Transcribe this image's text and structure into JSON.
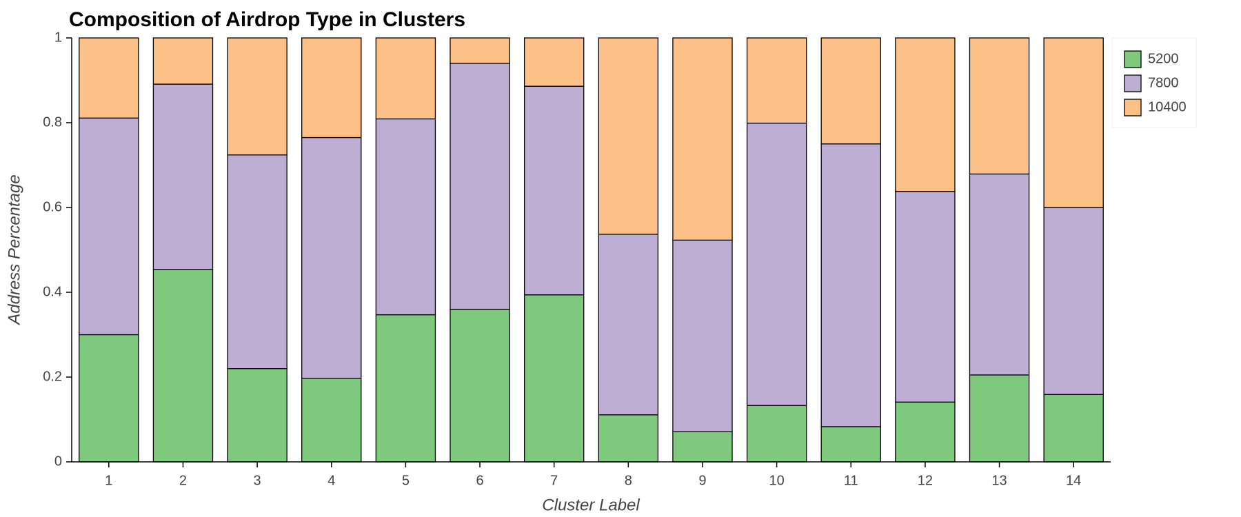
{
  "chart_data": {
    "type": "stacked_bar",
    "title": "Composition of Airdrop Type in Clusters",
    "x_label": "Cluster Label",
    "y_label": "Address Percentage",
    "categories": [
      "1",
      "2",
      "3",
      "4",
      "5",
      "6",
      "7",
      "8",
      "9",
      "10",
      "11",
      "12",
      "13",
      "14"
    ],
    "series": [
      {
        "name": "5200",
        "color": "#7fc97f",
        "values": [
          0.3,
          0.454,
          0.22,
          0.197,
          0.347,
          0.36,
          0.394,
          0.111,
          0.071,
          0.133,
          0.083,
          0.141,
          0.205,
          0.159
        ]
      },
      {
        "name": "7800",
        "color": "#beaed4",
        "values": [
          0.511,
          0.437,
          0.504,
          0.568,
          0.462,
          0.58,
          0.492,
          0.426,
          0.452,
          0.666,
          0.667,
          0.497,
          0.474,
          0.441
        ]
      },
      {
        "name": "10400",
        "color": "#fdc086",
        "values": [
          0.189,
          0.109,
          0.276,
          0.235,
          0.191,
          0.06,
          0.114,
          0.463,
          0.477,
          0.201,
          0.25,
          0.362,
          0.321,
          0.4
        ]
      }
    ],
    "ylim": [
      0,
      1
    ],
    "yticks": [
      0,
      0.2,
      0.4,
      0.6,
      0.8,
      1
    ],
    "legend": "outside-top-right"
  }
}
